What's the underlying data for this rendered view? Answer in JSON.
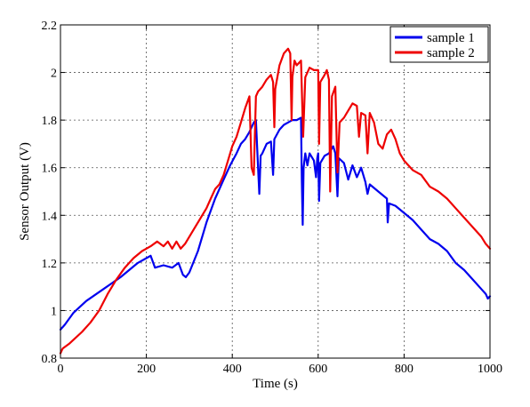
{
  "chart_data": {
    "type": "line",
    "title": "",
    "xlabel": "Time (s)",
    "ylabel": "Sensor Output (V)",
    "xlim": [
      0,
      1000
    ],
    "ylim": [
      0.8,
      2.2
    ],
    "xticks": [
      0,
      200,
      400,
      600,
      800,
      1000
    ],
    "xtick_labels": [
      "0",
      "200",
      "400",
      "600",
      "800",
      "1000"
    ],
    "yticks": [
      0.8,
      1.0,
      1.2,
      1.4,
      1.6,
      1.8,
      2.0,
      2.2
    ],
    "ytick_labels": [
      "0.8",
      "1",
      "1.2",
      "1.4",
      "1.6",
      "1.8",
      "2",
      "2.2"
    ],
    "grid": true,
    "legend_position": "top-right",
    "series": [
      {
        "name": "sample 1",
        "color": "#0000ee",
        "points": [
          [
            0,
            0.92
          ],
          [
            10,
            0.94
          ],
          [
            30,
            0.99
          ],
          [
            60,
            1.04
          ],
          [
            100,
            1.09
          ],
          [
            140,
            1.14
          ],
          [
            180,
            1.2
          ],
          [
            200,
            1.22
          ],
          [
            210,
            1.23
          ],
          [
            220,
            1.18
          ],
          [
            240,
            1.19
          ],
          [
            260,
            1.18
          ],
          [
            275,
            1.2
          ],
          [
            285,
            1.15
          ],
          [
            292,
            1.14
          ],
          [
            300,
            1.16
          ],
          [
            320,
            1.25
          ],
          [
            340,
            1.37
          ],
          [
            360,
            1.47
          ],
          [
            380,
            1.55
          ],
          [
            395,
            1.61
          ],
          [
            410,
            1.66
          ],
          [
            420,
            1.7
          ],
          [
            430,
            1.72
          ],
          [
            440,
            1.75
          ],
          [
            450,
            1.79
          ],
          [
            455,
            1.8
          ],
          [
            460,
            1.6
          ],
          [
            463,
            1.49
          ],
          [
            466,
            1.65
          ],
          [
            470,
            1.66
          ],
          [
            480,
            1.7
          ],
          [
            490,
            1.71
          ],
          [
            495,
            1.57
          ],
          [
            498,
            1.72
          ],
          [
            510,
            1.76
          ],
          [
            520,
            1.78
          ],
          [
            530,
            1.79
          ],
          [
            540,
            1.8
          ],
          [
            550,
            1.8
          ],
          [
            560,
            1.81
          ],
          [
            562,
            1.55
          ],
          [
            564,
            1.36
          ],
          [
            566,
            1.6
          ],
          [
            570,
            1.66
          ],
          [
            575,
            1.61
          ],
          [
            580,
            1.66
          ],
          [
            590,
            1.63
          ],
          [
            595,
            1.56
          ],
          [
            598,
            1.64
          ],
          [
            600,
            1.66
          ],
          [
            602,
            1.46
          ],
          [
            605,
            1.62
          ],
          [
            615,
            1.65
          ],
          [
            625,
            1.66
          ],
          [
            635,
            1.69
          ],
          [
            640,
            1.66
          ],
          [
            645,
            1.48
          ],
          [
            648,
            1.64
          ],
          [
            660,
            1.62
          ],
          [
            670,
            1.55
          ],
          [
            680,
            1.61
          ],
          [
            690,
            1.56
          ],
          [
            700,
            1.6
          ],
          [
            710,
            1.54
          ],
          [
            715,
            1.49
          ],
          [
            720,
            1.53
          ],
          [
            740,
            1.5
          ],
          [
            760,
            1.47
          ],
          [
            762,
            1.37
          ],
          [
            765,
            1.45
          ],
          [
            780,
            1.44
          ],
          [
            800,
            1.41
          ],
          [
            820,
            1.38
          ],
          [
            840,
            1.34
          ],
          [
            860,
            1.3
          ],
          [
            880,
            1.28
          ],
          [
            900,
            1.25
          ],
          [
            920,
            1.2
          ],
          [
            940,
            1.17
          ],
          [
            960,
            1.13
          ],
          [
            980,
            1.09
          ],
          [
            990,
            1.07
          ],
          [
            995,
            1.05
          ],
          [
            1000,
            1.06
          ]
        ]
      },
      {
        "name": "sample 2",
        "color": "#ee0000",
        "points": [
          [
            0,
            0.82
          ],
          [
            5,
            0.84
          ],
          [
            20,
            0.86
          ],
          [
            50,
            0.91
          ],
          [
            70,
            0.95
          ],
          [
            90,
            1.0
          ],
          [
            110,
            1.07
          ],
          [
            130,
            1.13
          ],
          [
            150,
            1.18
          ],
          [
            170,
            1.22
          ],
          [
            190,
            1.25
          ],
          [
            200,
            1.26
          ],
          [
            210,
            1.27
          ],
          [
            225,
            1.29
          ],
          [
            240,
            1.27
          ],
          [
            250,
            1.29
          ],
          [
            260,
            1.26
          ],
          [
            270,
            1.29
          ],
          [
            280,
            1.26
          ],
          [
            290,
            1.28
          ],
          [
            300,
            1.31
          ],
          [
            320,
            1.37
          ],
          [
            340,
            1.43
          ],
          [
            350,
            1.47
          ],
          [
            360,
            1.51
          ],
          [
            370,
            1.53
          ],
          [
            380,
            1.57
          ],
          [
            390,
            1.63
          ],
          [
            400,
            1.69
          ],
          [
            410,
            1.73
          ],
          [
            420,
            1.79
          ],
          [
            430,
            1.85
          ],
          [
            440,
            1.9
          ],
          [
            445,
            1.6
          ],
          [
            450,
            1.57
          ],
          [
            455,
            1.9
          ],
          [
            460,
            1.92
          ],
          [
            470,
            1.94
          ],
          [
            480,
            1.97
          ],
          [
            490,
            1.99
          ],
          [
            495,
            1.96
          ],
          [
            498,
            1.77
          ],
          [
            500,
            1.93
          ],
          [
            510,
            2.03
          ],
          [
            520,
            2.08
          ],
          [
            530,
            2.1
          ],
          [
            535,
            2.08
          ],
          [
            538,
            1.8
          ],
          [
            540,
            1.98
          ],
          [
            545,
            2.05
          ],
          [
            550,
            2.03
          ],
          [
            560,
            2.05
          ],
          [
            565,
            1.73
          ],
          [
            570,
            1.98
          ],
          [
            580,
            2.02
          ],
          [
            590,
            2.01
          ],
          [
            600,
            2.01
          ],
          [
            602,
            1.7
          ],
          [
            605,
            1.96
          ],
          [
            615,
            1.99
          ],
          [
            620,
            2.01
          ],
          [
            625,
            1.97
          ],
          [
            628,
            1.5
          ],
          [
            632,
            1.9
          ],
          [
            640,
            1.94
          ],
          [
            645,
            1.58
          ],
          [
            650,
            1.79
          ],
          [
            660,
            1.81
          ],
          [
            670,
            1.84
          ],
          [
            680,
            1.87
          ],
          [
            690,
            1.86
          ],
          [
            695,
            1.73
          ],
          [
            700,
            1.83
          ],
          [
            710,
            1.82
          ],
          [
            715,
            1.66
          ],
          [
            720,
            1.83
          ],
          [
            730,
            1.79
          ],
          [
            740,
            1.7
          ],
          [
            750,
            1.68
          ],
          [
            760,
            1.74
          ],
          [
            770,
            1.76
          ],
          [
            780,
            1.72
          ],
          [
            790,
            1.66
          ],
          [
            800,
            1.63
          ],
          [
            820,
            1.59
          ],
          [
            840,
            1.57
          ],
          [
            860,
            1.52
          ],
          [
            880,
            1.5
          ],
          [
            900,
            1.47
          ],
          [
            920,
            1.43
          ],
          [
            940,
            1.39
          ],
          [
            960,
            1.35
          ],
          [
            980,
            1.31
          ],
          [
            990,
            1.28
          ],
          [
            1000,
            1.26
          ]
        ]
      }
    ]
  }
}
